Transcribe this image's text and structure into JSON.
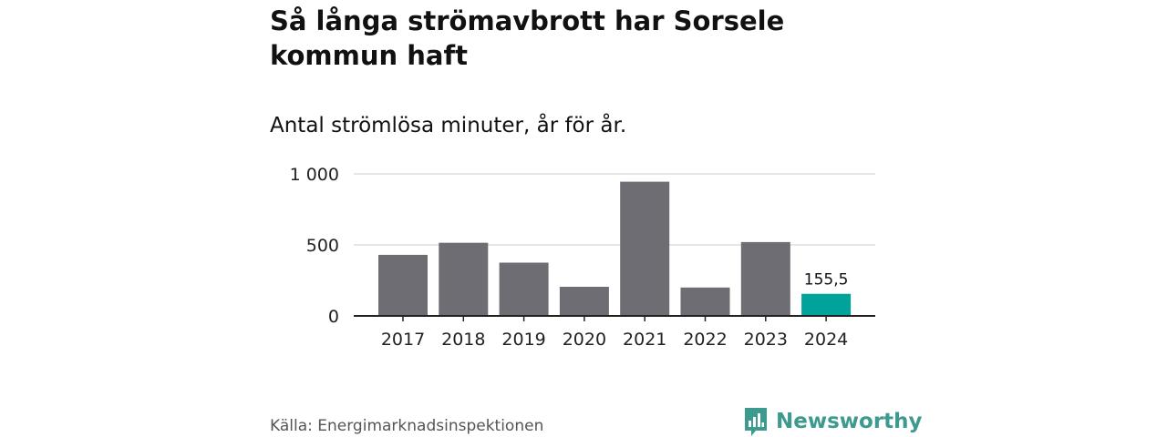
{
  "header": {
    "title": "Så långa strömavbrott har Sorsele kommun haft",
    "subtitle": "Antal strömlösa minuter, år för år."
  },
  "footer": {
    "source": "Källa: Energimarknadsinspektionen",
    "brand": "Newsworthy"
  },
  "colors": {
    "bar": "#6e6d73",
    "highlight": "#00a39a",
    "gridline": "#dddddd",
    "axis": "#222222",
    "brand": "#3d9a8f"
  },
  "chart_data": {
    "type": "bar",
    "categories": [
      "2017",
      "2018",
      "2019",
      "2020",
      "2021",
      "2022",
      "2023",
      "2024"
    ],
    "values": [
      430,
      515,
      375,
      205,
      945,
      200,
      520,
      155.5
    ],
    "highlight_index": 7,
    "data_labels": {
      "7": "155,5"
    },
    "ylim": [
      0,
      1000
    ],
    "yticks": [
      0,
      500,
      1000
    ],
    "ytick_labels": [
      "0",
      "500",
      "1 000"
    ],
    "grid": true,
    "legend": "none"
  }
}
